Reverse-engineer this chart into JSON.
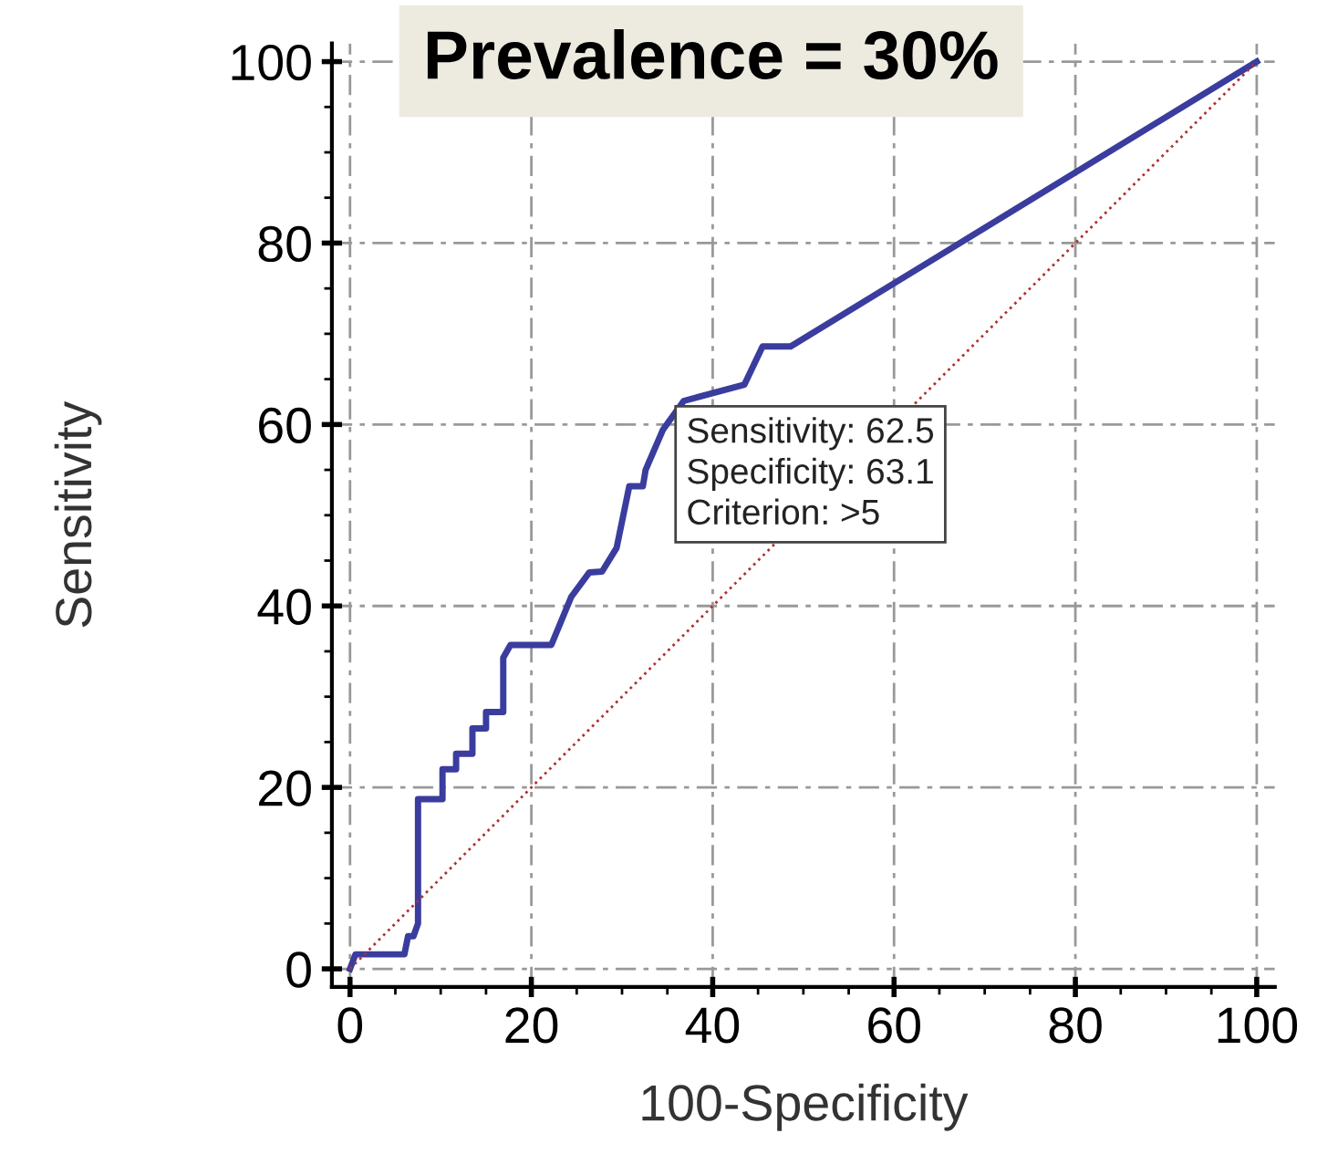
{
  "chart_data": {
    "type": "line",
    "title": "Prevalence = 30%",
    "xlabel": "100-Specificity",
    "ylabel": "Sensitivity",
    "series": [
      {
        "color": "#3a3d9e",
        "line_style": "solid",
        "x": [
          0,
          0.6,
          6,
          6.4,
          7,
          7.5,
          7.5,
          7.5,
          10.2,
          10.2,
          11.7,
          11.7,
          13.5,
          13.5,
          15,
          15,
          16.9,
          16.9,
          17.7,
          22.2,
          24.4,
          26.4,
          27.8,
          29.4,
          30.8,
          32.3,
          32.6,
          34.5,
          36.8,
          43.5,
          45.5,
          48.6,
          100
        ],
        "values": [
          0,
          1.6,
          1.6,
          3.6,
          3.6,
          5,
          15,
          18.7,
          18.7,
          22,
          22,
          23.7,
          23.7,
          26.5,
          26.5,
          28.3,
          28.3,
          34.3,
          35.7,
          35.7,
          41,
          43.7,
          43.8,
          46.4,
          53.2,
          53.2,
          55,
          59.4,
          62.6,
          64.4,
          68.6,
          68.6,
          100
        ]
      },
      {
        "color": "#b03030",
        "line_style": "dotted",
        "x": [
          0,
          100
        ],
        "values": [
          0,
          100
        ]
      }
    ],
    "xlim": [
      -2,
      102
    ],
    "ylim": [
      -2,
      102
    ],
    "xticks": [
      0,
      20,
      40,
      60,
      80,
      100
    ],
    "yticks": [
      0,
      20,
      40,
      60,
      80,
      100
    ],
    "grid": true,
    "annotations": [
      {
        "text": "Sensitivity: 62.5\nSpecificity: 63.1\nCriterion: >5",
        "x": 36.8,
        "y": 62.5
      }
    ]
  }
}
